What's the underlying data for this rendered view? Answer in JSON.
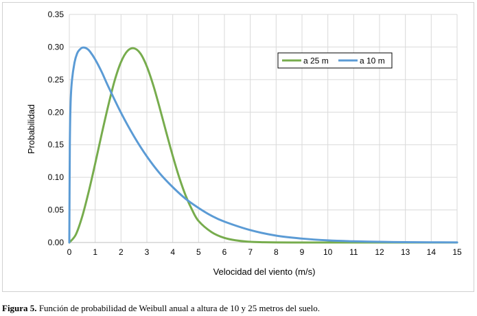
{
  "caption": {
    "label": "Figura 5.",
    "text": " Función de probabilidad de Weibull anual a altura de 10 y 25 metros del suelo."
  },
  "chart_data": {
    "type": "line",
    "xlabel": "Velocidad del viento (m/s)",
    "ylabel": "Probabilidad",
    "xlim": [
      0,
      15
    ],
    "ylim": [
      0,
      0.35
    ],
    "x_ticks": [
      "0",
      "1",
      "2",
      "3",
      "4",
      "5",
      "6",
      "7",
      "8",
      "9",
      "10",
      "11",
      "12",
      "13",
      "14",
      "15"
    ],
    "y_ticks": [
      "0.00",
      "0.05",
      "0.10",
      "0.15",
      "0.20",
      "0.25",
      "0.30",
      "0.35"
    ],
    "grid": true,
    "legend_position": "top-right",
    "series": [
      {
        "name": "a 25 m",
        "color": "#77ac4d",
        "x": [
          0,
          0.25,
          0.5,
          0.75,
          1.0,
          1.25,
          1.5,
          1.75,
          2.0,
          2.25,
          2.5,
          2.75,
          3.0,
          3.25,
          3.5,
          3.75,
          4.0,
          4.25,
          4.5,
          4.75,
          5.0,
          5.5,
          6.0,
          6.5,
          7.0,
          7.5,
          8.0,
          9.0,
          10.0,
          12.0,
          15.0
        ],
        "y": [
          0,
          0.012,
          0.04,
          0.078,
          0.121,
          0.166,
          0.209,
          0.248,
          0.277,
          0.294,
          0.298,
          0.29,
          0.27,
          0.241,
          0.206,
          0.169,
          0.133,
          0.1,
          0.072,
          0.05,
          0.033,
          0.016,
          0.007,
          0.003,
          0.001,
          0.0004,
          0.0001,
          0,
          0,
          0,
          0
        ]
      },
      {
        "name": "a 10 m",
        "color": "#5b9bd5",
        "x": [
          0,
          0.02,
          0.05,
          0.1,
          0.2,
          0.3,
          0.4,
          0.5,
          0.6,
          0.7,
          0.8,
          1.0,
          1.25,
          1.5,
          2.0,
          2.5,
          3.0,
          3.5,
          4.0,
          4.5,
          5.0,
          5.5,
          6.0,
          7.0,
          8.0,
          9.0,
          10.0,
          11.0,
          12.0,
          13.0,
          14.0,
          15.0
        ],
        "y": [
          0,
          0.15,
          0.215,
          0.248,
          0.276,
          0.29,
          0.296,
          0.299,
          0.299,
          0.297,
          0.293,
          0.281,
          0.262,
          0.24,
          0.199,
          0.163,
          0.132,
          0.106,
          0.085,
          0.067,
          0.053,
          0.041,
          0.032,
          0.019,
          0.0105,
          0.006,
          0.0033,
          0.0018,
          0.001,
          0.0005,
          0.0003,
          0.0001
        ]
      }
    ]
  }
}
